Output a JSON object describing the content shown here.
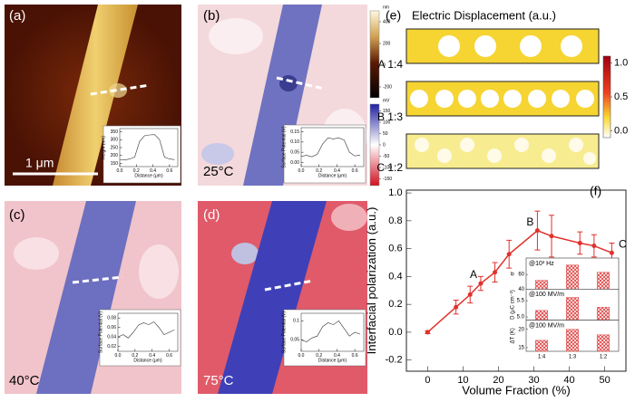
{
  "panels": [
    {
      "label": "(a)",
      "scale_bar": "1 μm"
    },
    {
      "label": "(b)",
      "temperature": "25°C"
    },
    {
      "label": "(c)",
      "temperature": "40°C"
    },
    {
      "label": "(d)",
      "temperature": "75°C"
    }
  ],
  "colorbars": [
    {
      "unit": "nm",
      "lim": [
        -300,
        500
      ],
      "ticks": [
        400,
        200,
        0,
        -200
      ]
    },
    {
      "unit": "mV",
      "lim": [
        -180,
        180
      ],
      "ticks": [
        150,
        100,
        50,
        0,
        -50,
        -100,
        -150
      ]
    }
  ],
  "panel_e": {
    "label": "(e)",
    "title": "Electric Displacement (a.u.)",
    "rows": [
      "A 1:4",
      "B 1:3",
      "C 1:2"
    ],
    "colorbar": {
      "lim": [
        -0.1,
        1.1
      ],
      "ticks": [
        {
          "value": 1,
          "label": "1.0"
        },
        0.5,
        {
          "value": 0,
          "label": "0.0"
        }
      ]
    }
  },
  "chart_data": [
    {
      "type": "line",
      "label": "(f)",
      "xlabel": "Volume Fraction (%)",
      "ylabel": "Interfacial polarization (a.u.)",
      "x": [
        0,
        8,
        12,
        15,
        19,
        23,
        31,
        35,
        43,
        47,
        52
      ],
      "series": [
        {
          "color": "#e0312b",
          "values": [
            0,
            0.18,
            0.27,
            0.35,
            0.43,
            0.56,
            0.73,
            0.69,
            0.64,
            0.62,
            0.57
          ],
          "errors": [
            0.01,
            0.05,
            0.06,
            0.05,
            0.07,
            0.1,
            0.14,
            0.15,
            0.08,
            0.08,
            0.07
          ]
        }
      ],
      "point_labels": [
        null,
        null,
        null,
        "A",
        null,
        null,
        "B",
        null,
        null,
        null,
        "C"
      ],
      "xlim": [
        -6,
        56
      ],
      "xticks": [
        0,
        10,
        20,
        30,
        40,
        50
      ],
      "ylim": [
        -0.28,
        1.02
      ],
      "yticks": [
        -0.2,
        {
          "value": 0,
          "label": "0.0"
        },
        0.2,
        0.4,
        0.6,
        0.8,
        {
          "value": 1,
          "label": "1.0"
        }
      ]
    },
    {
      "type": "bar",
      "categories": [
        "1:4",
        "1:3",
        "1:2"
      ],
      "color": "#e05050",
      "panels": [
        {
          "ylabel": "εr",
          "annotation": "@10³ Hz",
          "values": [
            52,
            73,
            63
          ],
          "ylim": [
            40,
            80
          ],
          "yticks": [
            40,
            60
          ]
        },
        {
          "ylabel": "D (μC cm⁻²)",
          "annotation": "@100 MV/m",
          "values": [
            5.2,
            5.6,
            5.3
          ],
          "ylim": [
            4.9,
            5.8
          ],
          "yticks": [
            {
              "value": 5,
              "label": "5.0"
            },
            5.5
          ]
        },
        {
          "ylabel": "ΔT (K)",
          "annotation": "@100 MV/m",
          "values": [
            17,
            20,
            18.5
          ],
          "ylim": [
            14,
            22
          ],
          "yticks": [
            15,
            20
          ]
        }
      ]
    },
    {
      "type": "line",
      "xlabel": "Distance (μm)",
      "ylabel": "Height (nm)",
      "x": [
        0,
        0.06,
        0.12,
        0.18,
        0.24,
        0.3,
        0.36,
        0.42,
        0.48,
        0.54,
        0.6,
        0.66
      ],
      "series": [
        {
          "color": "#333333",
          "values": [
            175,
            172,
            178,
            190,
            290,
            325,
            330,
            332,
            300,
            190,
            178,
            174
          ]
        }
      ],
      "xlim": [
        0,
        0.7
      ],
      "xticks": [
        {
          "value": 0,
          "label": "0.0"
        },
        0.2,
        0.4,
        0.6
      ],
      "ylim": [
        130,
        370
      ],
      "yticks": [
        150,
        200,
        250,
        300,
        350
      ]
    },
    {
      "type": "line",
      "xlabel": "Distance (μm)",
      "ylabel": "Surface Potential (V)",
      "x": [
        0,
        0.06,
        0.12,
        0.18,
        0.24,
        0.3,
        0.36,
        0.42,
        0.48,
        0.54,
        0.6,
        0.66
      ],
      "series": [
        {
          "color": "#333333",
          "values": [
            0.03,
            0.035,
            0.028,
            0.04,
            0.09,
            0.12,
            0.115,
            0.12,
            0.11,
            0.05,
            0.032,
            0.036
          ]
        }
      ],
      "xlim": [
        0,
        0.7
      ],
      "xticks": [
        {
          "value": 0,
          "label": "0.0"
        },
        0.2,
        0.4,
        0.6
      ],
      "ylim": [
        -0.02,
        0.17
      ],
      "yticks": [
        {
          "value": 0,
          "label": "0.00"
        },
        0.05,
        {
          "value": 0.1,
          "label": "0.10"
        },
        0.15
      ]
    },
    {
      "type": "line",
      "xlabel": "Distance (μm)",
      "ylabel": "Surface Potential (V)",
      "x": [
        0,
        0.06,
        0.12,
        0.18,
        0.24,
        0.3,
        0.36,
        0.42,
        0.48,
        0.54,
        0.6,
        0.66
      ],
      "series": [
        {
          "color": "#333333",
          "values": [
            0.04,
            0.045,
            0.038,
            0.05,
            0.065,
            0.07,
            0.066,
            0.072,
            0.06,
            0.045,
            0.05,
            0.055
          ]
        }
      ],
      "xlim": [
        0,
        0.7
      ],
      "xticks": [
        {
          "value": 0,
          "label": "0.0"
        },
        0.2,
        0.4,
        0.6
      ],
      "ylim": [
        0.01,
        0.09
      ],
      "yticks": [
        0.02,
        0.04,
        0.06,
        0.08
      ]
    },
    {
      "type": "line",
      "xlabel": "Distance (μm)",
      "ylabel": "Surface Potential (V)",
      "x": [
        0,
        0.06,
        0.12,
        0.18,
        0.24,
        0.3,
        0.36,
        0.42,
        0.48,
        0.54,
        0.6,
        0.66
      ],
      "series": [
        {
          "color": "#333333",
          "values": [
            0.05,
            0.045,
            0.055,
            0.06,
            0.085,
            0.095,
            0.09,
            0.1,
            0.08,
            0.06,
            0.07,
            0.065
          ]
        }
      ],
      "xlim": [
        0,
        0.7
      ],
      "xticks": [
        {
          "value": 0,
          "label": "0.0"
        },
        0.2,
        0.4,
        0.6
      ],
      "ylim": [
        0.02,
        0.12
      ],
      "yticks": [
        0.05,
        0.1
      ]
    }
  ]
}
